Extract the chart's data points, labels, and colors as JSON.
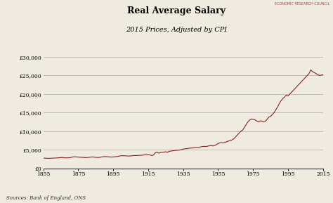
{
  "title": "Real Average Salary",
  "subtitle": "2015 Prices, Adjusted by CPI",
  "source_text": "Sources: Bank of England, ONS",
  "watermark": "ECONOMIC RESEARCH COUNCIL",
  "line_color": "#8B2020",
  "background_color": "#f0ebe0",
  "plot_bg_color": "#f0ebe0",
  "xlim": [
    1855,
    2015
  ],
  "ylim": [
    0,
    30000
  ],
  "xticks": [
    1855,
    1875,
    1895,
    1915,
    1935,
    1955,
    1975,
    1995,
    2015
  ],
  "yticks": [
    0,
    5000,
    10000,
    15000,
    20000,
    25000,
    30000
  ],
  "ytick_labels": [
    "£0",
    "£5,000",
    "£10,000",
    "£15,000",
    "£20,000",
    "£25,000",
    "£30,000"
  ],
  "years": [
    1855,
    1856,
    1857,
    1858,
    1859,
    1860,
    1861,
    1862,
    1863,
    1864,
    1865,
    1866,
    1867,
    1868,
    1869,
    1870,
    1871,
    1872,
    1873,
    1874,
    1875,
    1876,
    1877,
    1878,
    1879,
    1880,
    1881,
    1882,
    1883,
    1884,
    1885,
    1886,
    1887,
    1888,
    1889,
    1890,
    1891,
    1892,
    1893,
    1894,
    1895,
    1896,
    1897,
    1898,
    1899,
    1900,
    1901,
    1902,
    1903,
    1904,
    1905,
    1906,
    1907,
    1908,
    1909,
    1910,
    1911,
    1912,
    1913,
    1914,
    1915,
    1916,
    1917,
    1918,
    1919,
    1920,
    1921,
    1922,
    1923,
    1924,
    1925,
    1926,
    1927,
    1928,
    1929,
    1930,
    1931,
    1932,
    1933,
    1934,
    1935,
    1936,
    1937,
    1938,
    1939,
    1940,
    1941,
    1942,
    1943,
    1944,
    1945,
    1946,
    1947,
    1948,
    1949,
    1950,
    1951,
    1952,
    1953,
    1954,
    1955,
    1956,
    1957,
    1958,
    1959,
    1960,
    1961,
    1962,
    1963,
    1964,
    1965,
    1966,
    1967,
    1968,
    1969,
    1970,
    1971,
    1972,
    1973,
    1974,
    1975,
    1976,
    1977,
    1978,
    1979,
    1980,
    1981,
    1982,
    1983,
    1984,
    1985,
    1986,
    1987,
    1988,
    1989,
    1990,
    1991,
    1992,
    1993,
    1994,
    1995,
    1996,
    1997,
    1998,
    1999,
    2000,
    2001,
    2002,
    2003,
    2004,
    2005,
    2006,
    2007,
    2008,
    2009,
    2010,
    2011,
    2012,
    2013,
    2014,
    2015
  ],
  "values": [
    2800,
    2780,
    2760,
    2720,
    2750,
    2780,
    2800,
    2820,
    2840,
    2900,
    2920,
    2950,
    2880,
    2850,
    2870,
    2900,
    3000,
    3100,
    3150,
    3100,
    3050,
    3020,
    3000,
    2980,
    2900,
    2950,
    3000,
    3050,
    3100,
    3050,
    2980,
    2950,
    2980,
    3050,
    3150,
    3200,
    3180,
    3150,
    3100,
    3080,
    3100,
    3150,
    3200,
    3280,
    3400,
    3450,
    3420,
    3400,
    3380,
    3350,
    3380,
    3450,
    3500,
    3480,
    3500,
    3520,
    3550,
    3600,
    3700,
    3650,
    3700,
    3650,
    3500,
    3600,
    4200,
    4400,
    4100,
    4300,
    4350,
    4400,
    4500,
    4350,
    4600,
    4700,
    4750,
    4800,
    4900,
    4900,
    4950,
    5100,
    5200,
    5300,
    5350,
    5400,
    5500,
    5500,
    5550,
    5600,
    5650,
    5700,
    5800,
    5900,
    5950,
    5900,
    6000,
    6100,
    6150,
    6050,
    6200,
    6400,
    6700,
    6900,
    6950,
    6900,
    7000,
    7200,
    7400,
    7500,
    7700,
    8000,
    8500,
    9000,
    9500,
    10000,
    10300,
    11000,
    11800,
    12500,
    13000,
    13300,
    13200,
    13100,
    12800,
    12500,
    12800,
    12750,
    12500,
    12700,
    13200,
    13800,
    14000,
    14500,
    15000,
    15800,
    16500,
    17500,
    18200,
    18800,
    19200,
    19700,
    19500,
    20000,
    20500,
    21000,
    21500,
    22000,
    22500,
    23000,
    23500,
    24000,
    24500,
    25000,
    25500,
    26500,
    26000,
    25800,
    25500,
    25200,
    25000,
    25100,
    25200
  ]
}
